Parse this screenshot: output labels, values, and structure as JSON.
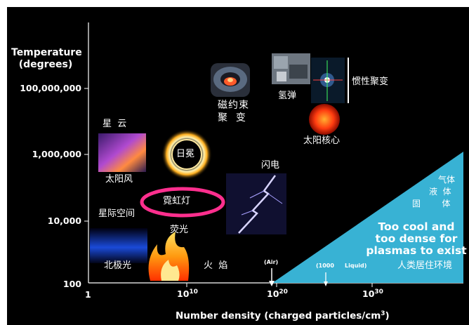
{
  "y_axis": {
    "title_line1": "Temperature",
    "title_line2": "(degrees)",
    "ticks": [
      "100,000,000",
      "1,000,000",
      "10,000",
      "100"
    ]
  },
  "x_axis": {
    "title_main": "Number density (charged particles/cm",
    "title_sup": "3",
    "title_end": ")",
    "tick_1": "1",
    "tick_10_base": "10",
    "tick_10_exp": "10",
    "tick_20_base": "10",
    "tick_20_exp": "20",
    "tick_30_base": "10",
    "tick_30_exp": "30"
  },
  "labels": {
    "magnetic_line1": "磁约束",
    "magnetic_line2": "聚  变",
    "hydrogen_bomb": "氢弹",
    "inertial_fusion": "惯性聚变",
    "solar_core": "太阳核心",
    "nebula": "星  云",
    "solar_wind": "太阳风",
    "corona": "日冕",
    "lightning": "闪电",
    "neon": "霓虹灯",
    "fluorescent": "荧光",
    "interstellar": "星际空间",
    "aurora": "北极光",
    "flame": "火  焰",
    "air": "(Air)",
    "liquid_1000": "(1000",
    "liquid_word": "Liquid)",
    "gas": "气体",
    "liquid": "液  体",
    "solid": "固        体",
    "too_cool_1": "Too cool and",
    "too_cool_2": "too dense for",
    "too_cool_3": "plasmas to exist",
    "human_env": "人类居住环境"
  },
  "colors": {
    "background": "#000000",
    "region": "#38b2d4",
    "neon_ring": "#ff2f8e",
    "lightning": "#b8b0ff"
  }
}
